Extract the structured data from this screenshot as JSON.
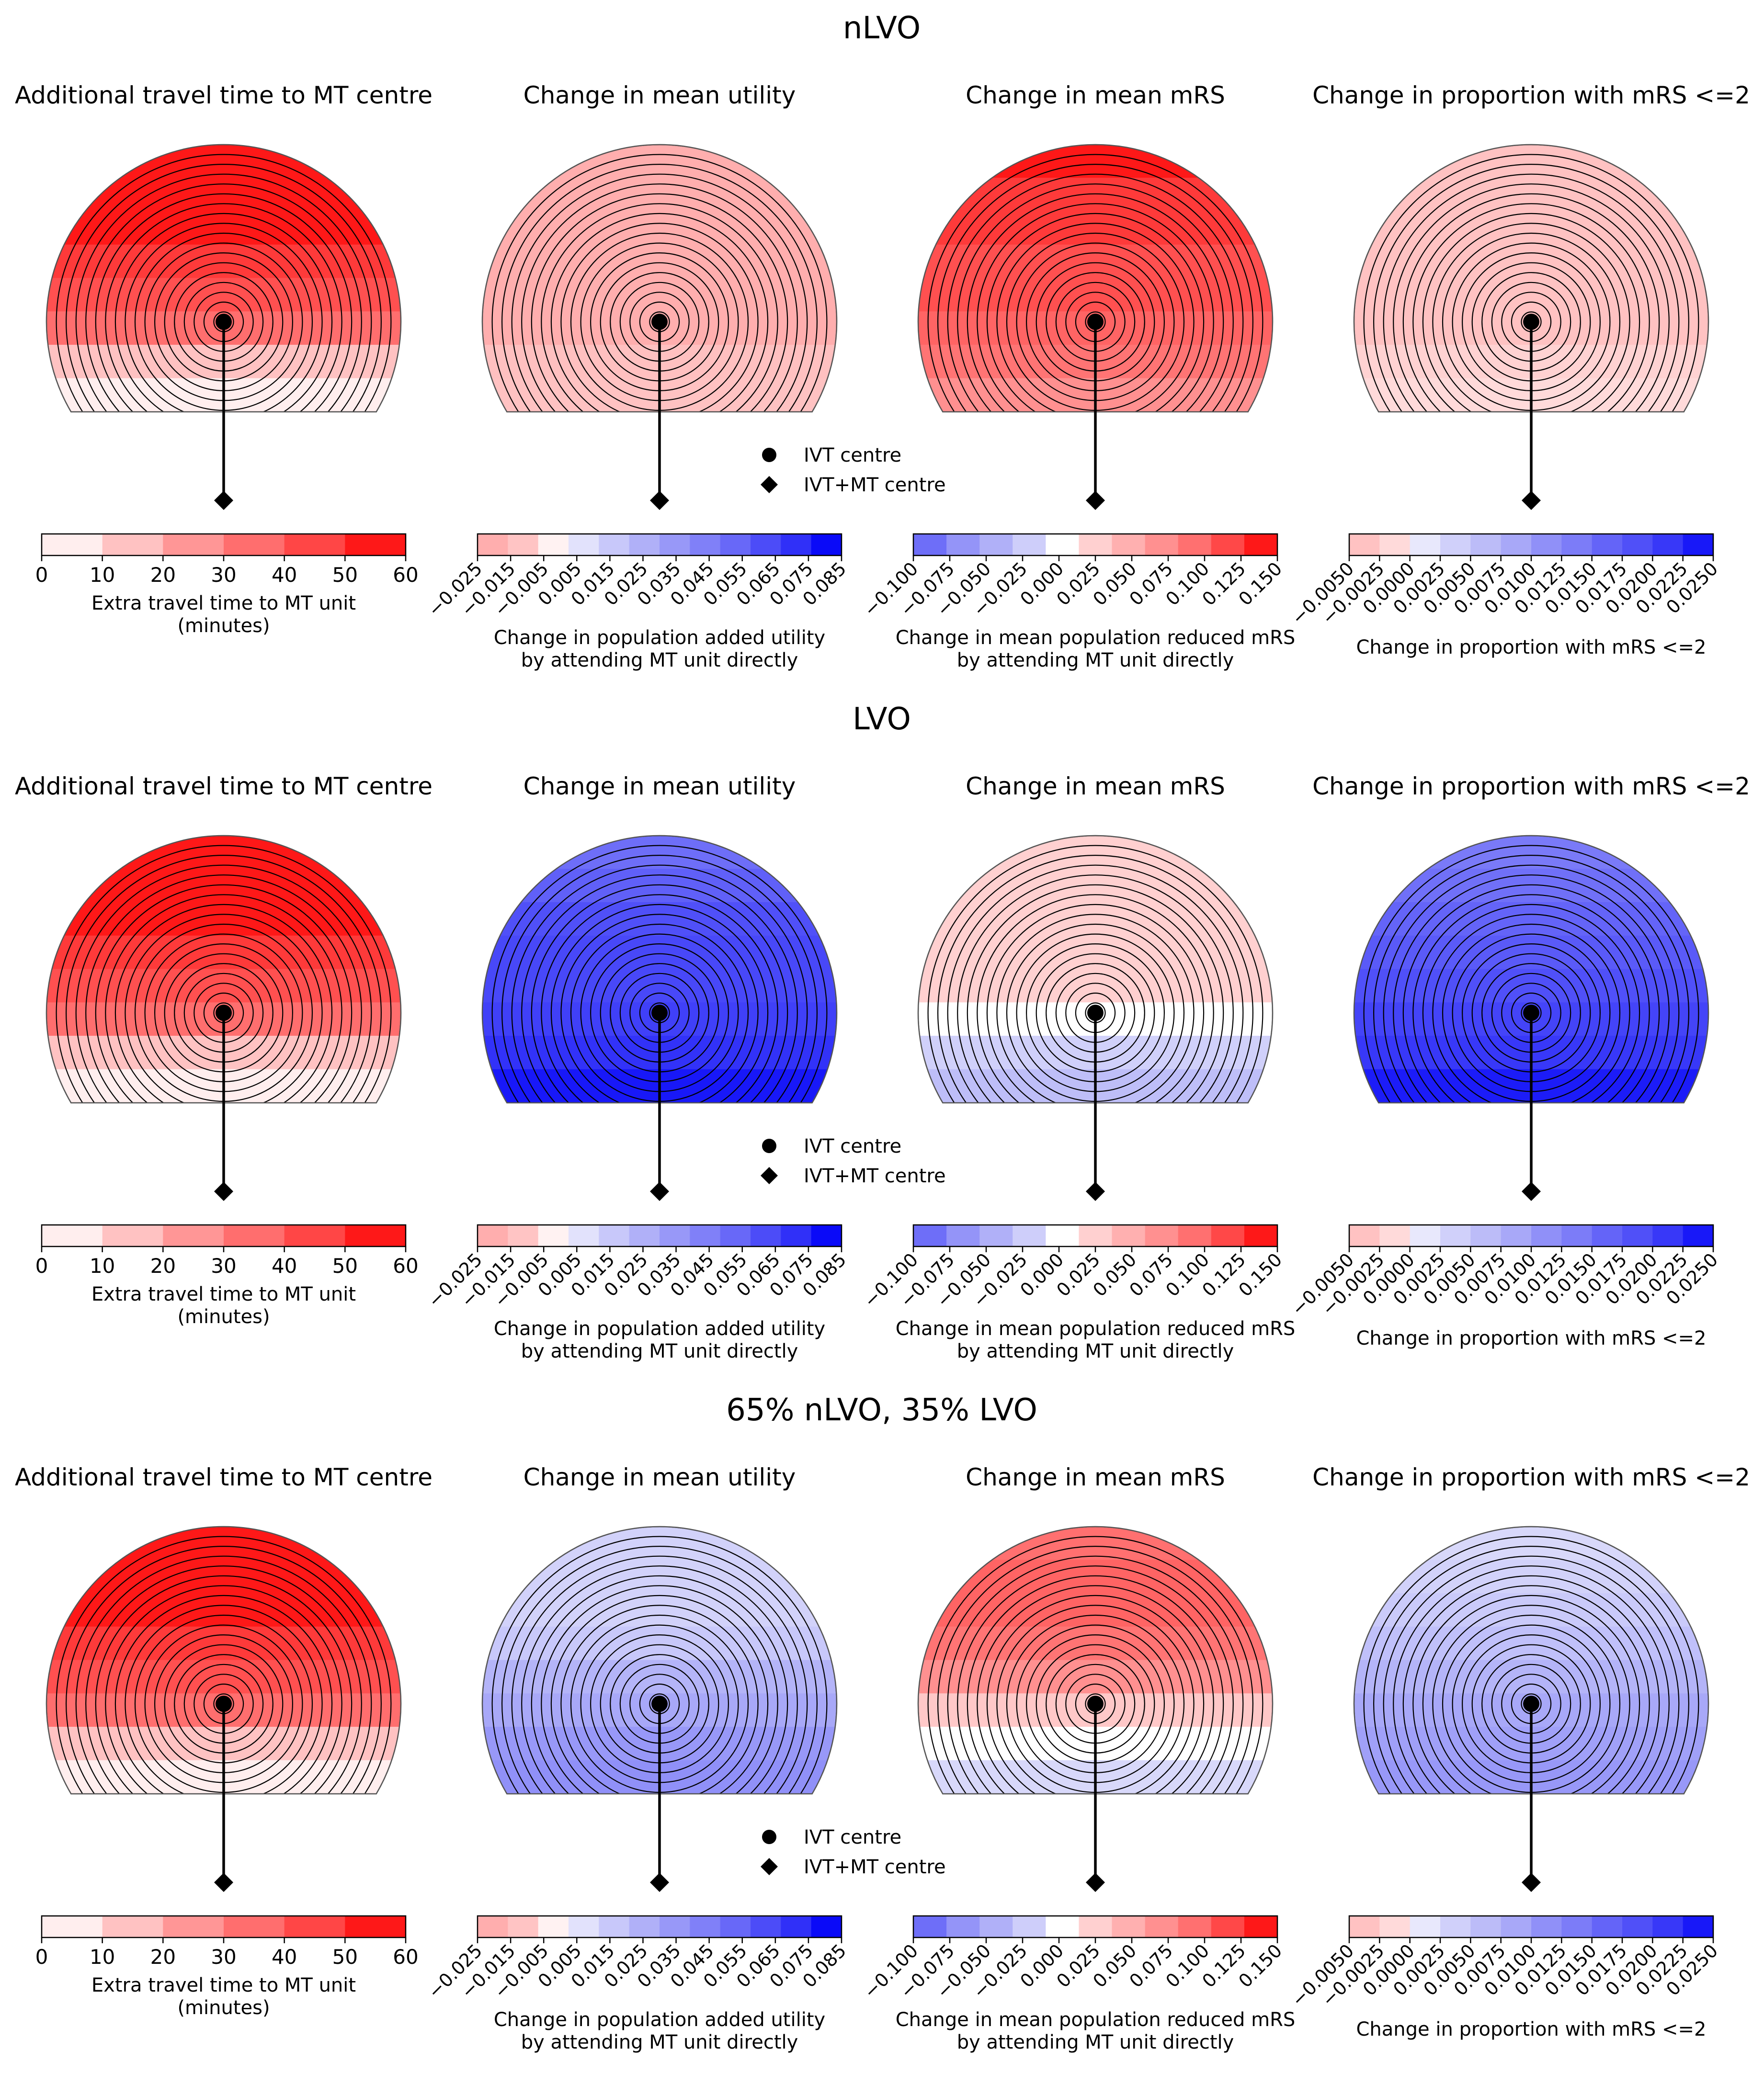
{
  "figure": {
    "type": "small-multiples-semicircle-maps",
    "rows": [
      {
        "title": "nLVO",
        "panels": [
          {
            "title": "Additional travel time to MT centre",
            "scale": "travel",
            "fills": [
              "#fe1818",
              "#fe1818",
              "#fe1818",
              "#fe3a3a",
              "#ff5050",
              "#ff6e6e",
              "#ffc2c2",
              "#ffeeee"
            ]
          },
          {
            "title": "Change in mean utility",
            "scale": "utility",
            "fills": [
              "#ffaeae",
              "#ffaeae",
              "#ffaeae",
              "#ffaeae",
              "#ffaeae",
              "#ffaeae",
              "#ffc0c0",
              "#ffc2c2"
            ]
          },
          {
            "title": "Change in mean mRS",
            "scale": "mrs",
            "fills": [
              "#fe1818",
              "#fe3a3a",
              "#fe3a3a",
              "#ff5050",
              "#ff5050",
              "#ff6464",
              "#ff7474",
              "#ff9090"
            ]
          },
          {
            "title": "Change in proportion with mRS <=2",
            "scale": "prop",
            "fills": [
              "#ffc2c2",
              "#ffc2c2",
              "#ffc2c2",
              "#ffc2c2",
              "#ffc2c2",
              "#ffc2c2",
              "#ffd2d2",
              "#ffdada"
            ]
          }
        ]
      },
      {
        "title": "LVO",
        "panels": [
          {
            "title": "Additional travel time to MT centre",
            "scale": "travel",
            "fills": [
              "#fe1818",
              "#fe1818",
              "#fe1818",
              "#fe3a3a",
              "#ff5050",
              "#ff6e6e",
              "#ffc2c2",
              "#ffeeee"
            ]
          },
          {
            "title": "Change in mean utility",
            "scale": "utility",
            "fills": [
              "#6e6ef8",
              "#6060f8",
              "#5050f8",
              "#4848f8",
              "#4848f8",
              "#4040f8",
              "#3232f8",
              "#1818f8"
            ]
          },
          {
            "title": "Change in mean mRS",
            "scale": "mrs",
            "fills": [
              "#ffd0d0",
              "#ffd0d0",
              "#ffd0d0",
              "#ffd0d0",
              "#ffd0d0",
              "#ffffff",
              "#d0d0fa",
              "#bebef8"
            ]
          },
          {
            "title": "Change in proportion with mRS <=2",
            "scale": "prop",
            "fills": [
              "#7a7af8",
              "#7070f8",
              "#6464f8",
              "#5a5af8",
              "#5050f8",
              "#4444f8",
              "#3838f8",
              "#1c1cf8"
            ]
          }
        ]
      },
      {
        "title": "65% nLVO, 35% LVO",
        "panels": [
          {
            "title": "Additional travel time to MT centre",
            "scale": "travel",
            "fills": [
              "#fe1818",
              "#fe1818",
              "#fe1818",
              "#fe3a3a",
              "#ff5050",
              "#ff6e6e",
              "#ffc2c2",
              "#ffeeee"
            ]
          },
          {
            "title": "Change in mean utility",
            "scale": "utility",
            "fills": [
              "#d2d2fa",
              "#d2d2fa",
              "#d2d2fa",
              "#c8c8fa",
              "#b4b4f8",
              "#a8a8f8",
              "#9898f8",
              "#9090f8"
            ]
          },
          {
            "title": "Change in mean mRS",
            "scale": "mrs",
            "fills": [
              "#ff7070",
              "#ff6464",
              "#ff6464",
              "#ff7474",
              "#ff9090",
              "#ffc8c8",
              "#ffffff",
              "#d8d8fa"
            ]
          },
          {
            "title": "Change in proportion with mRS <=2",
            "scale": "prop",
            "fills": [
              "#d8d8fa",
              "#d2d2fa",
              "#cacafa",
              "#c0c0fa",
              "#b4b4f8",
              "#a8a8f8",
              "#a0a0f8",
              "#9898f8"
            ]
          }
        ]
      }
    ],
    "legend": {
      "ivt": "IVT centre",
      "mt": "IVT+MT centre"
    }
  },
  "chart_data": {
    "type": "heatmap",
    "description_scales": "colour scales shared by the panels",
    "scales": {
      "travel": {
        "label_lines": [
          "Extra travel time to MT unit",
          "(minutes)"
        ],
        "ticks": [
          "0",
          "10",
          "20",
          "30",
          "40",
          "50",
          "60"
        ],
        "rotated": false,
        "colors": [
          "#ffeeee",
          "#ffc2c2",
          "#ff9696",
          "#ff6e6e",
          "#ff4646",
          "#fe1818"
        ],
        "vmin": 0,
        "vmax": 60
      },
      "utility": {
        "label_lines": [
          "Change in population added utility",
          "by attending MT unit directly"
        ],
        "ticks": [
          "−0.025",
          "−0.015",
          "−0.005",
          "0.005",
          "0.015",
          "0.025",
          "0.035",
          "0.045",
          "0.055",
          "0.065",
          "0.075",
          "0.085"
        ],
        "rotated": true,
        "colors": [
          "#ffaeae",
          "#ffc4c4",
          "#fff2f2",
          "#e2e2fc",
          "#c8c8fa",
          "#b0b0f8",
          "#9898f8",
          "#8080f8",
          "#6868f8",
          "#4c4cf8",
          "#3030f8",
          "#0a0af8"
        ],
        "vmin": -0.025,
        "vmax": 0.085
      },
      "mrs": {
        "label_lines": [
          "Change in mean population reduced mRS",
          "by attending MT unit directly"
        ],
        "ticks": [
          "−0.100",
          "−0.075",
          "−0.050",
          "−0.025",
          "0.000",
          "0.025",
          "0.050",
          "0.075",
          "0.100",
          "0.125",
          "0.150"
        ],
        "rotated": true,
        "colors": [
          "#6e6ef8",
          "#9494f8",
          "#b0b0f8",
          "#cecefa",
          "#ffffff",
          "#ffd0d0",
          "#ffb0b0",
          "#ff9090",
          "#ff7070",
          "#ff4848",
          "#fe1818"
        ],
        "vmin": -0.1,
        "vmax": 0.15
      },
      "prop": {
        "label_lines": [
          "Change in proportion with mRS <=2"
        ],
        "ticks": [
          "−0.0050",
          "−0.0025",
          "0.0000",
          "0.0025",
          "0.0050",
          "0.0075",
          "0.0100",
          "0.0125",
          "0.0150",
          "0.0175",
          "0.0200",
          "0.0225",
          "0.0250"
        ],
        "rotated": true,
        "colors": [
          "#ffc2c2",
          "#ffdada",
          "#e8e8fc",
          "#d0d0fa",
          "#bcbcf8",
          "#a8a8f8",
          "#9090f8",
          "#7c7cf8",
          "#6464f8",
          "#5050f8",
          "#3838f8",
          "#1818f8"
        ],
        "vmin": -0.005,
        "vmax": 0.025
      }
    }
  }
}
